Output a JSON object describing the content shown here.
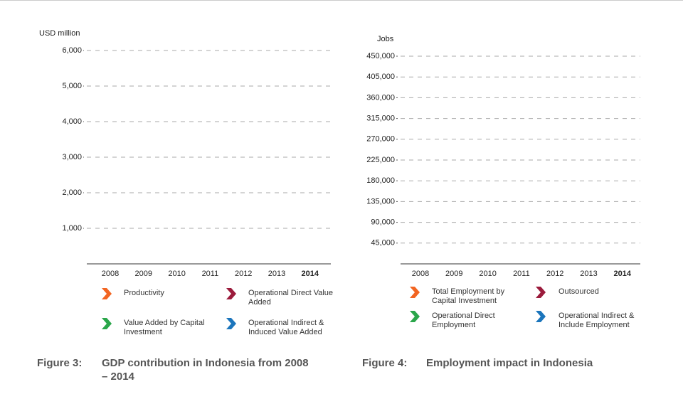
{
  "chart_data": [
    {
      "type": "bar",
      "y_label": "USD million",
      "categories": [
        "2008",
        "2009",
        "2010",
        "2011",
        "2012",
        "2013",
        "2014"
      ],
      "ylim": [
        0,
        6000
      ],
      "yticks": [
        {
          "value": 1000,
          "label": "1,000"
        },
        {
          "value": 2000,
          "label": "2,000"
        },
        {
          "value": 3000,
          "label": "3,000"
        },
        {
          "value": 4000,
          "label": "4,000"
        },
        {
          "value": 5000,
          "label": "5,000"
        },
        {
          "value": 6000,
          "label": "6,000"
        }
      ],
      "grid": true,
      "series": [
        {
          "name": "Productivity",
          "color": "#f26522"
        },
        {
          "name": "Operational Direct Value Added",
          "color": "#9b1b3c"
        },
        {
          "name": "Value Added by Capital Investment",
          "color": "#2aa64a"
        },
        {
          "name": "Operational Indirect & Induced Value Added",
          "color": "#1b75bc"
        }
      ],
      "caption": {
        "label": "Figure 3:",
        "text": "GDP contribution in Indonesia from 2008 – 2014"
      }
    },
    {
      "type": "bar",
      "y_label": "Jobs",
      "categories": [
        "2008",
        "2009",
        "2010",
        "2011",
        "2012",
        "2013",
        "2014"
      ],
      "ylim": [
        0,
        450000
      ],
      "yticks": [
        {
          "value": 45000,
          "label": "45,000"
        },
        {
          "value": 90000,
          "label": "90,000"
        },
        {
          "value": 135000,
          "label": "135,000"
        },
        {
          "value": 180000,
          "label": "180,000"
        },
        {
          "value": 225000,
          "label": "225,000"
        },
        {
          "value": 270000,
          "label": "270,000"
        },
        {
          "value": 315000,
          "label": "315,000"
        },
        {
          "value": 360000,
          "label": "360,000"
        },
        {
          "value": 405000,
          "label": "405,000"
        },
        {
          "value": 450000,
          "label": "450,000"
        }
      ],
      "grid": true,
      "series": [
        {
          "name": "Total Employment by Capital Investment",
          "color": "#f26522"
        },
        {
          "name": "Outsourced",
          "color": "#9b1b3c"
        },
        {
          "name": "Operational Direct Employment",
          "color": "#2aa64a"
        },
        {
          "name": "Operational Indirect & Include Employment",
          "color": "#1b75bc"
        }
      ],
      "caption": {
        "label": "Figure 4:",
        "text": "Employment impact in Indonesia"
      }
    }
  ]
}
